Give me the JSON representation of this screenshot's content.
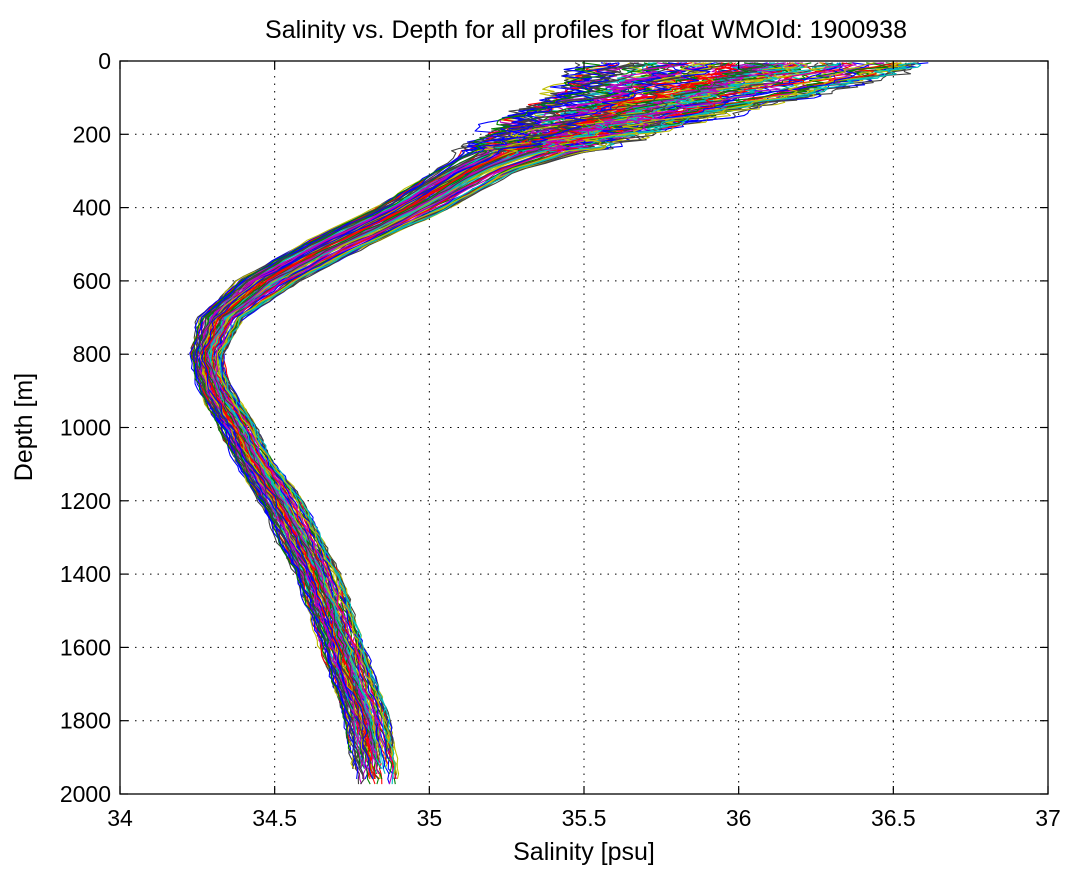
{
  "chart_data": {
    "type": "line",
    "title": "Salinity vs. Depth for all profiles for float WMOId: 1900938",
    "xlabel": "Salinity [psu]",
    "ylabel": "Depth [m]",
    "xlim": [
      34,
      37
    ],
    "ylim": [
      0,
      2000
    ],
    "y_reversed": true,
    "grid": true,
    "legend": "none",
    "xticks": [
      34,
      34.5,
      35,
      35.5,
      36,
      36.5,
      37
    ],
    "xtick_labels": [
      "34",
      "34.5",
      "35",
      "35.5",
      "36",
      "36.5",
      "37"
    ],
    "yticks": [
      0,
      200,
      400,
      600,
      800,
      1000,
      1200,
      1400,
      1600,
      1800,
      2000
    ],
    "ytick_labels": [
      "0",
      "200",
      "400",
      "600",
      "800",
      "1000",
      "1200",
      "1400",
      "1600",
      "1800",
      "2000"
    ],
    "colors": [
      "#0000ff",
      "#008000",
      "#ff0000",
      "#00bfbf",
      "#bf00bf",
      "#bfbf00",
      "#404040"
    ],
    "mean_profile": {
      "depth": [
        10,
        50,
        100,
        150,
        200,
        300,
        400,
        500,
        600,
        700,
        800,
        850,
        900,
        1000,
        1100,
        1200,
        1300,
        1400,
        1500,
        1600,
        1700,
        1800,
        1900,
        1960
      ],
      "salinity": [
        36.05,
        35.95,
        35.8,
        35.6,
        35.45,
        35.15,
        34.95,
        34.7,
        34.48,
        34.33,
        34.28,
        34.29,
        34.31,
        34.38,
        34.44,
        34.52,
        34.58,
        34.64,
        34.68,
        34.72,
        34.76,
        34.8,
        34.82,
        34.83
      ]
    },
    "series_count": 120,
    "spread_psu": {
      "depth": [
        10,
        50,
        100,
        150,
        200,
        300,
        400,
        500,
        600,
        700,
        800,
        850,
        900,
        1000,
        1100,
        1200,
        1300,
        1400,
        1500,
        1600,
        1700,
        1800,
        1900,
        1960
      ],
      "spread": [
        0.55,
        0.5,
        0.4,
        0.32,
        0.22,
        0.13,
        0.12,
        0.11,
        0.1,
        0.07,
        0.05,
        0.05,
        0.05,
        0.06,
        0.06,
        0.07,
        0.07,
        0.07,
        0.07,
        0.07,
        0.07,
        0.07,
        0.07,
        0.07
      ]
    }
  }
}
